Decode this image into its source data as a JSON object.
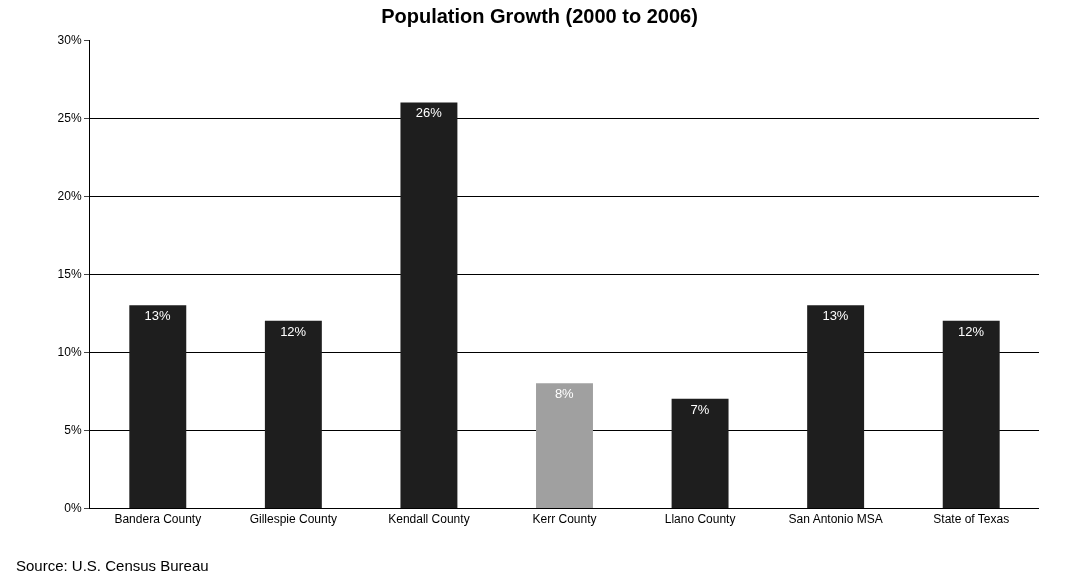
{
  "chart_data": {
    "type": "bar",
    "title": "Population Growth (2000 to 2006)",
    "categories": [
      "Bandera County",
      "Gillespie County",
      "Kendall County",
      "Kerr County",
      "Llano County",
      "San Antonio MSA",
      "State of Texas"
    ],
    "values": [
      13,
      12,
      26,
      8,
      7,
      13,
      12
    ],
    "value_labels": [
      "13%",
      "12%",
      "26%",
      "8%",
      "7%",
      "13%",
      "12%"
    ],
    "colors": [
      "#1e1e1e",
      "#1e1e1e",
      "#1e1e1e",
      "#a0a0a0",
      "#1e1e1e",
      "#1e1e1e",
      "#1e1e1e"
    ],
    "ylim": [
      0,
      30
    ],
    "yticks": [
      {
        "value": 0,
        "label": "0%"
      },
      {
        "value": 5,
        "label": "5%"
      },
      {
        "value": 10,
        "label": "10%"
      },
      {
        "value": 15,
        "label": "15%"
      },
      {
        "value": 20,
        "label": "20%"
      },
      {
        "value": 25,
        "label": "25%"
      },
      {
        "value": 30,
        "label": "30%"
      }
    ],
    "grid": "y",
    "annotations": [
      "Source: U.S. Census Bureau"
    ]
  }
}
